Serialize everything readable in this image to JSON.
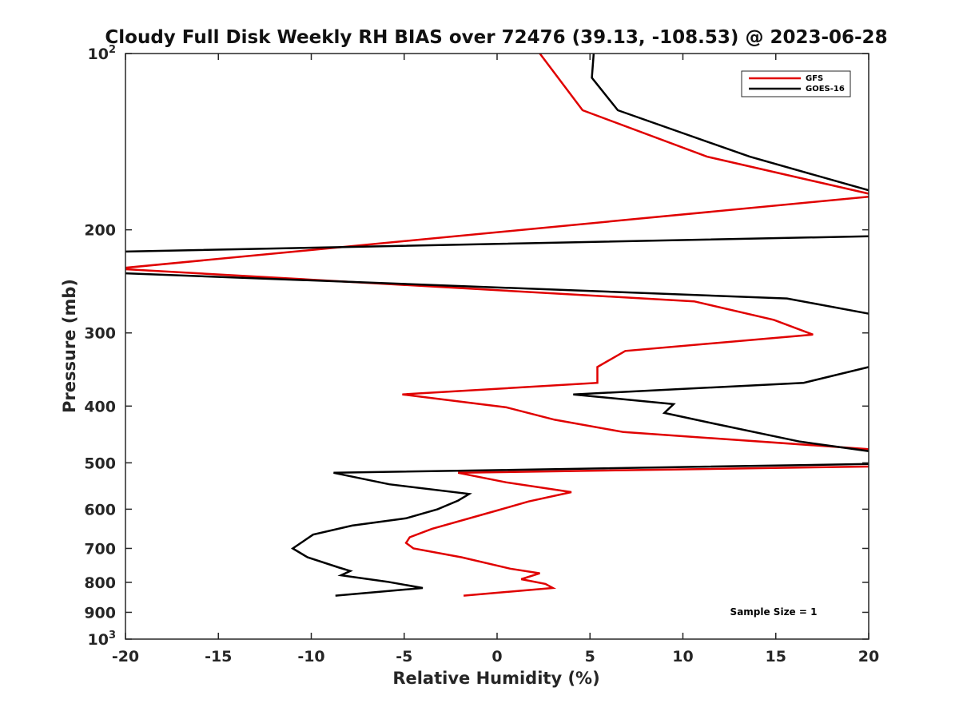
{
  "chart_data": {
    "type": "line",
    "title": "Cloudy Full Disk Weekly RH BIAS over 72476 (39.13, -108.53) @ 2023-06-28",
    "xlabel": "Relative Humidity (%)",
    "ylabel": "Pressure (mb)",
    "xlim": [
      -20,
      20
    ],
    "ylim": [
      100,
      1000
    ],
    "yscale": "log",
    "y_reversed": true,
    "x_ticks": [
      "-20",
      "-15",
      "-10",
      "-5",
      "0",
      "5",
      "10",
      "15",
      "20"
    ],
    "y_ticks": [
      {
        "value": 100,
        "base": "10",
        "exp": "2"
      },
      {
        "value": 200,
        "base": "200",
        "exp": ""
      },
      {
        "value": 300,
        "base": "300",
        "exp": ""
      },
      {
        "value": 400,
        "base": "400",
        "exp": ""
      },
      {
        "value": 500,
        "base": "500",
        "exp": ""
      },
      {
        "value": 600,
        "base": "600",
        "exp": ""
      },
      {
        "value": 700,
        "base": "700",
        "exp": ""
      },
      {
        "value": 800,
        "base": "800",
        "exp": ""
      },
      {
        "value": 900,
        "base": "900",
        "exp": ""
      },
      {
        "value": 1000,
        "base": "10",
        "exp": "3"
      }
    ],
    "grid": false,
    "legend_position": "top-right",
    "annotation": "Sample Size = 1",
    "series": [
      {
        "name": "GFS",
        "color": "#e00000",
        "points": [
          [
            2.3,
            100
          ],
          [
            4.6,
            125
          ],
          [
            11.3,
            150
          ],
          [
            20.5,
            175
          ],
          [
            -20.5,
            233
          ],
          [
            10.6,
            265
          ],
          [
            14.9,
            285
          ],
          [
            17.0,
            302
          ],
          [
            6.9,
            322
          ],
          [
            5.4,
            343
          ],
          [
            5.4,
            365
          ],
          [
            -5.1,
            382
          ],
          [
            0.5,
            402
          ],
          [
            3.1,
            422
          ],
          [
            6.8,
            443
          ],
          [
            20.5,
            475
          ],
          [
            20.5,
            507
          ],
          [
            -2.1,
            520
          ],
          [
            0.5,
            540
          ],
          [
            4.0,
            561
          ],
          [
            1.7,
            582
          ],
          [
            0.0,
            603
          ],
          [
            -3.5,
            648
          ],
          [
            -4.7,
            670
          ],
          [
            -4.9,
            685
          ],
          [
            -4.5,
            700
          ],
          [
            -1.9,
            725
          ],
          [
            0.7,
            758
          ],
          [
            2.3,
            772
          ],
          [
            1.3,
            790
          ],
          [
            2.6,
            805
          ],
          [
            3.0,
            818
          ],
          [
            -1.8,
            843
          ]
        ]
      },
      {
        "name": "GOES-16",
        "color": "#000000",
        "points": [
          [
            5.2,
            100
          ],
          [
            5.1,
            110
          ],
          [
            6.5,
            125
          ],
          [
            13.6,
            150
          ],
          [
            20.5,
            173
          ],
          [
            20.5,
            205
          ],
          [
            -20.5,
            218
          ],
          [
            -20.5,
            237
          ],
          [
            15.6,
            262
          ],
          [
            20.5,
            280
          ],
          [
            20.5,
            340
          ],
          [
            16.5,
            365
          ],
          [
            4.1,
            382
          ],
          [
            9.5,
            397
          ],
          [
            9.0,
            411
          ],
          [
            11.3,
            426
          ],
          [
            16.3,
            460
          ],
          [
            20.5,
            480
          ],
          [
            20.5,
            502
          ],
          [
            -8.8,
            520
          ],
          [
            -5.8,
            544
          ],
          [
            -1.5,
            565
          ],
          [
            -2.1,
            580
          ],
          [
            -3.2,
            600
          ],
          [
            -4.9,
            622
          ],
          [
            -7.8,
            640
          ],
          [
            -9.9,
            663
          ],
          [
            -11.0,
            700
          ],
          [
            -10.2,
            725
          ],
          [
            -8.5,
            755
          ],
          [
            -7.9,
            765
          ],
          [
            -8.4,
            778
          ],
          [
            -5.9,
            798
          ],
          [
            -4.0,
            818
          ],
          [
            -8.7,
            843
          ]
        ]
      }
    ]
  }
}
